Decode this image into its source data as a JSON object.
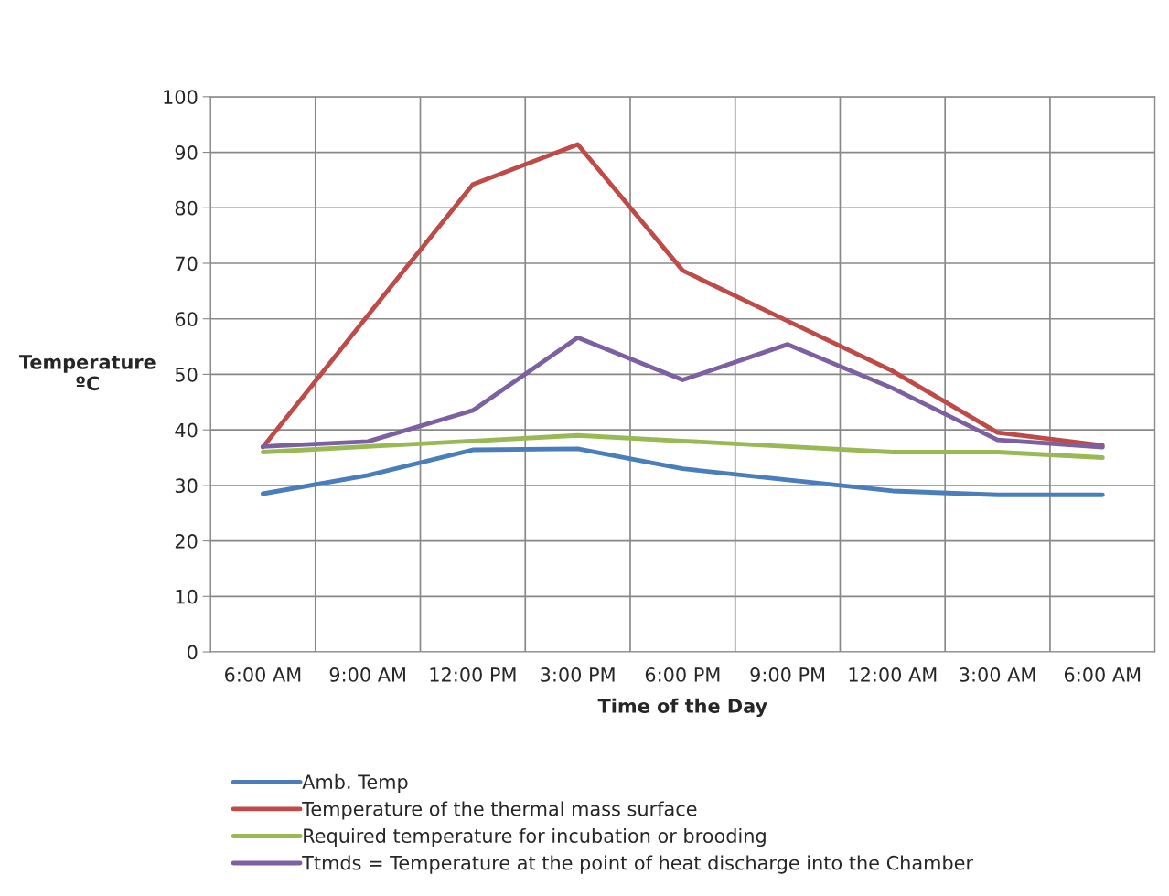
{
  "chart_data": {
    "type": "line",
    "xlabel": "Time of the Day",
    "ylabel": "Temperature\nºC",
    "categories": [
      "6:00 AM",
      "9:00 AM",
      "12:00 PM",
      "3:00 PM",
      "6:00 PM",
      "9:00 PM",
      "12:00 AM",
      "3:00 AM",
      "6:00 AM"
    ],
    "series": [
      {
        "name": "Amb. Temp",
        "color": "#4a7ebb",
        "values": [
          28.5,
          31.8,
          36.4,
          36.6,
          33,
          31,
          29,
          28.3,
          28.3
        ]
      },
      {
        "name": "Temperature of the thermal mass surface",
        "color": "#be4b48",
        "values": [
          36.9,
          60.6,
          84.2,
          91.4,
          68.7,
          59.6,
          50.6,
          39.5,
          37.2
        ]
      },
      {
        "name": "Required temperature for incubation or brooding",
        "color": "#98b954",
        "values": [
          36,
          37,
          38,
          39,
          38,
          37,
          36,
          36,
          35
        ]
      },
      {
        "name": "Ttmds = Temperature at the point of heat discharge into the Chamber",
        "color": "#7d60a0",
        "values": [
          37,
          37.9,
          43.5,
          56.6,
          49,
          55.4,
          47.5,
          38.2,
          36.9
        ]
      }
    ],
    "ylim": [
      0,
      100
    ],
    "yticks": [
      0,
      10,
      20,
      30,
      40,
      50,
      60,
      70,
      80,
      90,
      100
    ],
    "grid": true,
    "legend": "bottom",
    "marker": "none",
    "line_style": "solid"
  }
}
